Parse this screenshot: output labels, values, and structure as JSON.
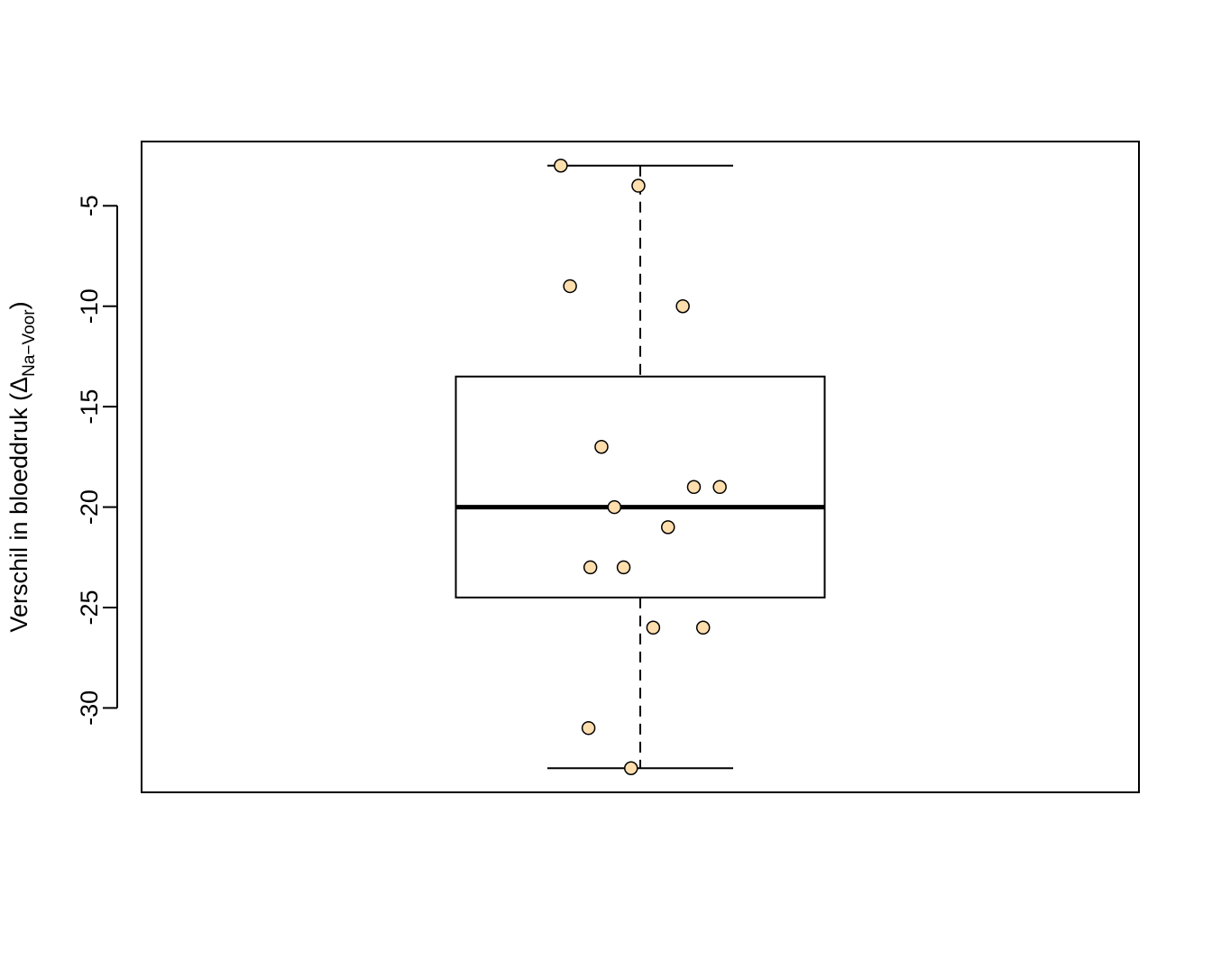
{
  "chart_data": {
    "type": "boxplot",
    "title": "",
    "xlabel": "",
    "ylabel_main": "Verschil in bloeddruk (",
    "ylabel_delta": "Δ",
    "ylabel_subscript": "Na−Voor",
    "ylabel_close": ")",
    "ylim": [
      -34.2,
      -1.8
    ],
    "yticks": [
      -5,
      -10,
      -15,
      -20,
      -25,
      -30
    ],
    "box": {
      "whisker_low": -33,
      "q1": -24.5,
      "median": -20,
      "q3": -13.5,
      "whisker_high": -3
    },
    "points": [
      {
        "jitter": -0.43,
        "y": -3
      },
      {
        "jitter": -0.01,
        "y": -4
      },
      {
        "jitter": -0.38,
        "y": -9
      },
      {
        "jitter": 0.23,
        "y": -10
      },
      {
        "jitter": -0.21,
        "y": -17
      },
      {
        "jitter": 0.29,
        "y": -19
      },
      {
        "jitter": 0.43,
        "y": -19
      },
      {
        "jitter": -0.14,
        "y": -20
      },
      {
        "jitter": 0.15,
        "y": -21
      },
      {
        "jitter": -0.27,
        "y": -23
      },
      {
        "jitter": -0.09,
        "y": -23
      },
      {
        "jitter": 0.07,
        "y": -26
      },
      {
        "jitter": 0.34,
        "y": -26
      },
      {
        "jitter": -0.28,
        "y": -31
      },
      {
        "jitter": -0.05,
        "y": -33
      }
    ],
    "point_fill": "#FFDEAD",
    "grid": false,
    "legend": "none"
  }
}
